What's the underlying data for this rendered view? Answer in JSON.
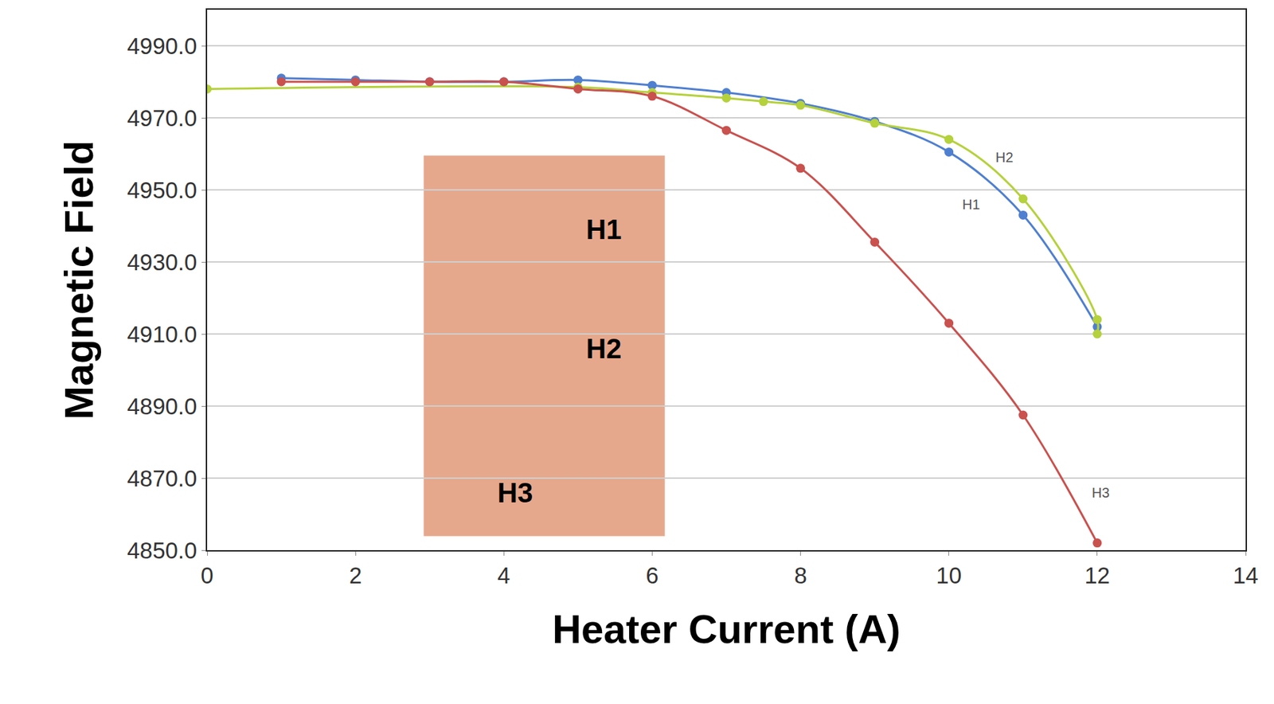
{
  "chart_data": {
    "type": "line",
    "x_label": "Heater Current (A)",
    "y_label": "Magnetic Field",
    "xlim": [
      0,
      14
    ],
    "xticks": [
      0,
      2,
      4,
      6,
      8,
      10,
      12,
      14
    ],
    "ylim": [
      4850,
      5000
    ],
    "yticks": [
      {
        "value": 4850,
        "label": "4850.0"
      },
      {
        "value": 4870,
        "label": "4870.0"
      },
      {
        "value": 4890,
        "label": "4890.0"
      },
      {
        "value": 4910,
        "label": "4910.0"
      },
      {
        "value": 4930,
        "label": "4930.0"
      },
      {
        "value": 4950,
        "label": "4950.0"
      },
      {
        "value": 4970,
        "label": "4970.0"
      },
      {
        "value": 4990,
        "label": "4990.0"
      }
    ],
    "grid": true,
    "marker": "circle",
    "line_style": "spline",
    "series": [
      {
        "name": "H1",
        "color": "#4f7fd0",
        "x": [
          1,
          2,
          3,
          4,
          5,
          6,
          7,
          8,
          9,
          10,
          11,
          12
        ],
        "values": [
          4981,
          4980.5,
          4980,
          4980,
          4980.5,
          4979,
          4977,
          4974,
          4969,
          4960.5,
          4943,
          4912
        ]
      },
      {
        "name": "H2",
        "color": "#b5d13c",
        "x": [
          0,
          5,
          6,
          7,
          7.5,
          8,
          9,
          10,
          11,
          12,
          12
        ],
        "values": [
          4978,
          4978.5,
          4977,
          4975.5,
          4974.5,
          4973.5,
          4968.5,
          4964,
          4947.5,
          4914,
          4910
        ]
      },
      {
        "name": "H3",
        "color": "#c9514e",
        "x": [
          1,
          2,
          3,
          4,
          5,
          6,
          7,
          8,
          9,
          10,
          11,
          12
        ],
        "values": [
          4980,
          4980,
          4980,
          4980,
          4978,
          4976,
          4966.5,
          4956,
          4935.5,
          4913,
          4887.5,
          4852
        ]
      }
    ],
    "annotations": [
      {
        "text": "H2",
        "x": 10.75,
        "y": 4959,
        "kind": "handwritten"
      },
      {
        "text": "H1",
        "x": 10.3,
        "y": 4946,
        "kind": "handwritten"
      },
      {
        "text": "H3",
        "x": 12.05,
        "y": 4866,
        "kind": "handwritten"
      },
      {
        "text": "H1",
        "x": 5.35,
        "y": 4939,
        "kind": "inset"
      },
      {
        "text": "H2",
        "x": 5.35,
        "y": 4906,
        "kind": "inset"
      },
      {
        "text": "H3",
        "x": 4.15,
        "y": 4866,
        "kind": "inset"
      }
    ]
  }
}
